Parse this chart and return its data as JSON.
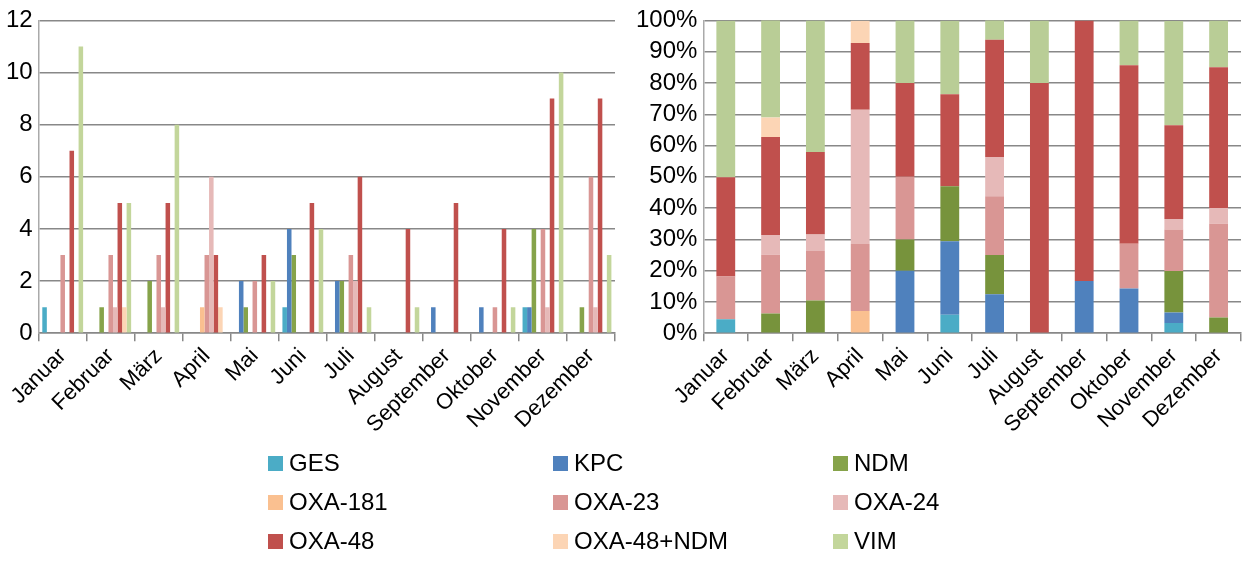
{
  "chart_data": [
    {
      "type": "bar",
      "categories": [
        "Januar",
        "Februar",
        "März",
        "April",
        "Mai",
        "Juni",
        "Juli",
        "August",
        "September",
        "Oktober",
        "November",
        "Dezember"
      ],
      "series": [
        {
          "name": "GES",
          "color": "#4bacc6",
          "values": [
            1,
            0,
            0,
            0,
            0,
            1,
            0,
            0,
            0,
            0,
            1,
            0
          ]
        },
        {
          "name": "KPC",
          "color": "#4f81bd",
          "values": [
            0,
            0,
            0,
            0,
            2,
            4,
            2,
            0,
            1,
            1,
            1,
            0
          ]
        },
        {
          "name": "NDM",
          "color": "#86a34a",
          "values": [
            0,
            1,
            2,
            0,
            1,
            3,
            2,
            0,
            0,
            0,
            4,
            1
          ]
        },
        {
          "name": "OXA-181",
          "color": "#fac090",
          "values": [
            0,
            0,
            0,
            1,
            0,
            0,
            0,
            0,
            0,
            0,
            0,
            0
          ]
        },
        {
          "name": "OXA-23",
          "color": "#d99694",
          "values": [
            3,
            3,
            3,
            3,
            2,
            0,
            3,
            0,
            0,
            1,
            4,
            6
          ]
        },
        {
          "name": "OXA-24",
          "color": "#e6b9b8",
          "values": [
            0,
            1,
            1,
            6,
            0,
            0,
            2,
            0,
            0,
            0,
            1,
            1
          ]
        },
        {
          "name": "OXA-48",
          "color": "#c0504d",
          "values": [
            7,
            5,
            5,
            3,
            3,
            5,
            6,
            4,
            5,
            4,
            9,
            9
          ]
        },
        {
          "name": "OXA-48+NDM",
          "color": "#fcd5b5",
          "values": [
            0,
            1,
            0,
            1,
            0,
            0,
            0,
            0,
            0,
            0,
            0,
            0
          ]
        },
        {
          "name": "VIM",
          "color": "#c3d69b",
          "values": [
            11,
            5,
            8,
            0,
            2,
            4,
            1,
            1,
            0,
            1,
            10,
            3
          ]
        }
      ],
      "ylim": [
        0,
        12
      ],
      "yticks": [
        0,
        2,
        4,
        6,
        8,
        10,
        12
      ],
      "grid": "y",
      "legend": "bottom"
    },
    {
      "type": "bar",
      "stacked": true,
      "categories": [
        "Januar",
        "Februar",
        "März",
        "April",
        "Mai",
        "Juni",
        "Juli",
        "August",
        "September",
        "Oktober",
        "November",
        "Dezember"
      ],
      "series": [
        {
          "color": "#4bacc6",
          "values": [
            4.5,
            0,
            0,
            0,
            0,
            5.9,
            0,
            0,
            0,
            0,
            3.3,
            0
          ]
        },
        {
          "color": "#4f81bd",
          "values": [
            0,
            0,
            0,
            0,
            20,
            23.5,
            12.5,
            0,
            16.7,
            14.3,
            3.3,
            0
          ]
        },
        {
          "color": "#77933c",
          "values": [
            0,
            6.3,
            10.5,
            0,
            10,
            17.6,
            12.5,
            0,
            0,
            0,
            13.3,
            5
          ]
        },
        {
          "color": "#fac090",
          "values": [
            0,
            0,
            0,
            7.1,
            0,
            0,
            0,
            0,
            0,
            0,
            0,
            0
          ]
        },
        {
          "color": "#d99694",
          "values": [
            13.6,
            18.8,
            15.8,
            21.4,
            20,
            0,
            18.8,
            0,
            0,
            14.3,
            13.3,
            30
          ]
        },
        {
          "color": "#e6b9b8",
          "values": [
            0,
            6.3,
            5.3,
            42.9,
            0,
            0,
            12.5,
            0,
            0,
            0,
            3.3,
            5
          ]
        },
        {
          "color": "#c0504d",
          "values": [
            31.8,
            31.3,
            26.3,
            21.4,
            30,
            29.4,
            37.5,
            80,
            83.3,
            57.1,
            30,
            45
          ]
        },
        {
          "color": "#fcd5b5",
          "values": [
            0,
            6.3,
            0,
            7.1,
            0,
            0,
            0,
            0,
            0,
            0,
            0,
            0
          ]
        },
        {
          "color": "#b9cd96",
          "values": [
            50,
            31.3,
            42.1,
            0,
            20,
            23.5,
            6.3,
            20,
            0,
            14.3,
            33.3,
            15
          ]
        }
      ],
      "ylim": [
        0,
        100
      ],
      "yticks": [
        {
          "value": 0,
          "label": "0%"
        },
        {
          "value": 10,
          "label": "10%"
        },
        {
          "value": 20,
          "label": "20%"
        },
        {
          "value": 30,
          "label": "30%"
        },
        {
          "value": 40,
          "label": "40%"
        },
        {
          "value": 50,
          "label": "50%"
        },
        {
          "value": 60,
          "label": "60%"
        },
        {
          "value": 70,
          "label": "70%"
        },
        {
          "value": 80,
          "label": "80%"
        },
        {
          "value": 90,
          "label": "90%"
        },
        {
          "value": 100,
          "label": "100%"
        }
      ],
      "grid": "y"
    }
  ]
}
